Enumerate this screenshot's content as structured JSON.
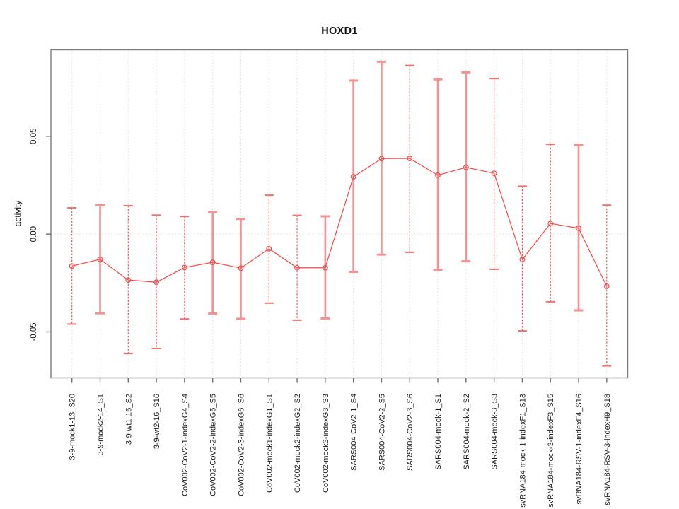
{
  "title": "HOXD1",
  "colors": {
    "frame": "#7a7a7a",
    "grid": "#dcdcdc",
    "tick": "#6e6e6e",
    "text": "#1a1a1a",
    "line": "#f04a4a",
    "point": "#f04a4a",
    "bar_thin": "#f04a4a",
    "bar_thick": "#f59191",
    "cap": "#f59191"
  },
  "chart_data": {
    "type": "line",
    "title": "HOXD1",
    "xlabel": "",
    "ylabel": "activity",
    "ylim": [
      -0.0735,
      0.0942
    ],
    "grid": "vertical dotted gridline at each category; horizontal dotted line at y=0; no legend",
    "legend_position": "none",
    "yticks": [
      {
        "value": 0.05,
        "label": "0.05"
      },
      {
        "value": 0.0,
        "label": "0.00"
      },
      {
        "value": -0.05,
        "label": "-0.05"
      }
    ],
    "categories": [
      "3-9-mock1-13_S20",
      "3-9-mock2-14_S1",
      "3-9-wt1-15_S2",
      "3-9-wt2-16_S16",
      "CoV002-CoV2-1-indexG4_S4",
      "CoV002-CoV2-2-indexG5_S5",
      "CoV002-CoV2-3-indexG6_S6",
      "CoV002-mock1-indexG1_S1",
      "CoV002-mock2-indexG2_S2",
      "CoV002-mock3-indexG3_S3",
      "SARS004-CoV2-1_S4",
      "SARS004-CoV2-2_S5",
      "SARS004-CoV2-3_S6",
      "SARS004-mock-1_S1",
      "SARS004-mock-2_S2",
      "SARS004-mock-3_S3",
      "svRNA184-mock-1-indexF1_S13",
      "svRNA184-mock-3-indexF3_S15",
      "svRNA184-RSV-1-indexF4_S16",
      "svRNA184-RSV-3-indexH9_S18"
    ],
    "series": [
      {
        "name": "activity",
        "marker": "open-circle",
        "points": [
          {
            "y": -0.0163,
            "lo": -0.046,
            "hi": 0.0134,
            "bar_style": "thin"
          },
          {
            "y": -0.0129,
            "lo": -0.0405,
            "hi": 0.0148,
            "bar_style": "thick"
          },
          {
            "y": -0.0235,
            "lo": -0.0611,
            "hi": 0.0145,
            "bar_style": "thin"
          },
          {
            "y": -0.0246,
            "lo": -0.0585,
            "hi": 0.0097,
            "bar_style": "thin"
          },
          {
            "y": -0.0171,
            "lo": -0.0434,
            "hi": 0.009,
            "bar_style": "thin"
          },
          {
            "y": -0.0144,
            "lo": -0.0406,
            "hi": 0.0112,
            "bar_style": "thick"
          },
          {
            "y": -0.0174,
            "lo": -0.0433,
            "hi": 0.0078,
            "bar_style": "thick"
          },
          {
            "y": -0.0075,
            "lo": -0.0353,
            "hi": 0.0199,
            "bar_style": "thin"
          },
          {
            "y": -0.0172,
            "lo": -0.044,
            "hi": 0.0096,
            "bar_style": "thin"
          },
          {
            "y": -0.0172,
            "lo": -0.0431,
            "hi": 0.0091,
            "bar_style": "thick"
          },
          {
            "y": 0.0293,
            "lo": -0.0193,
            "hi": 0.0785,
            "bar_style": "thick"
          },
          {
            "y": 0.0386,
            "lo": -0.0105,
            "hi": 0.0881,
            "bar_style": "thick"
          },
          {
            "y": 0.0387,
            "lo": -0.0093,
            "hi": 0.0862,
            "bar_style": "thin"
          },
          {
            "y": 0.0301,
            "lo": -0.0183,
            "hi": 0.0791,
            "bar_style": "thick"
          },
          {
            "y": 0.0341,
            "lo": -0.0139,
            "hi": 0.0827,
            "bar_style": "thick"
          },
          {
            "y": 0.0311,
            "lo": -0.018,
            "hi": 0.0795,
            "bar_style": "thin"
          },
          {
            "y": -0.013,
            "lo": -0.0495,
            "hi": 0.0245,
            "bar_style": "thin"
          },
          {
            "y": 0.0054,
            "lo": -0.0346,
            "hi": 0.0459,
            "bar_style": "thin"
          },
          {
            "y": 0.003,
            "lo": -0.039,
            "hi": 0.0456,
            "bar_style": "thick"
          },
          {
            "y": -0.0267,
            "lo": -0.0674,
            "hi": 0.0148,
            "bar_style": "thin"
          }
        ]
      }
    ]
  }
}
